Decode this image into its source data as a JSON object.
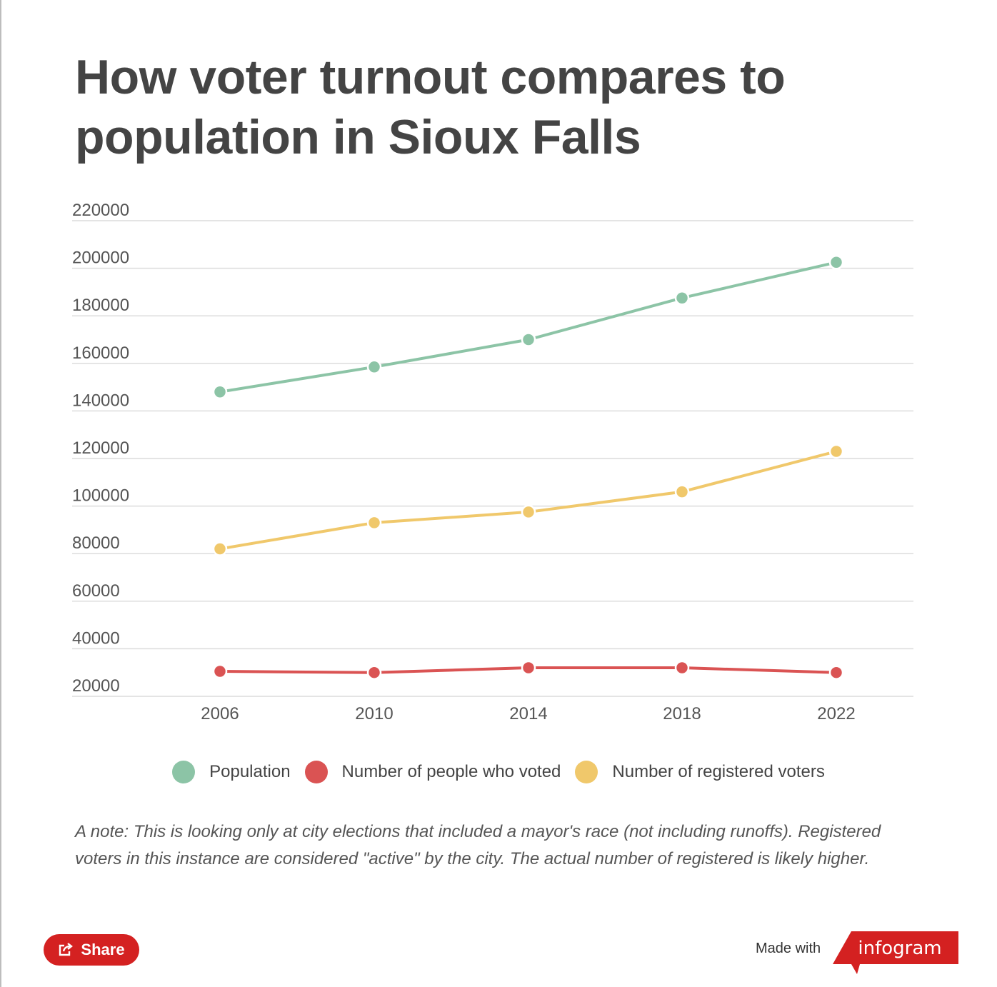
{
  "title": "How voter turnout compares to population in Sioux Falls",
  "chart_data": {
    "type": "line",
    "x": [
      "2006",
      "2010",
      "2014",
      "2018",
      "2022"
    ],
    "y_ticks": [
      "20000",
      "40000",
      "60000",
      "80000",
      "100000",
      "120000",
      "140000",
      "160000",
      "180000",
      "200000",
      "220000"
    ],
    "ylim": [
      20000,
      220000
    ],
    "grid": true,
    "legend_position": "bottom",
    "series": [
      {
        "name": "Population",
        "color": "#8cc4a6",
        "values": [
          148000,
          158500,
          170000,
          187500,
          202500
        ]
      },
      {
        "name": "Number of people who voted",
        "color": "#da5353",
        "values": [
          30500,
          30000,
          32000,
          32000,
          30000
        ]
      },
      {
        "name": "Number of registered voters",
        "color": "#f0c86b",
        "values": [
          82000,
          93000,
          97500,
          106000,
          123000
        ]
      }
    ]
  },
  "note": "A note: This is looking only at city elections that included a mayor's race (not including runoffs). Registered voters in this instance are considered \"active\" by the city. The actual number of registered is likely higher.",
  "footer": {
    "share_label": "Share",
    "made_with": "Made with",
    "brand": "infogram",
    "brand_color": "#d42121"
  }
}
